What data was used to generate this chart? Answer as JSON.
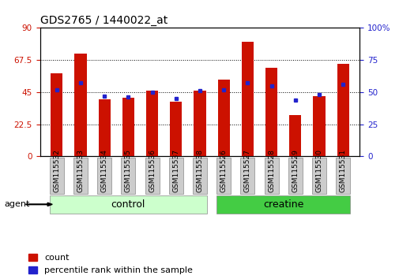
{
  "title": "GDS2765 / 1440022_at",
  "categories": [
    "GSM115532",
    "GSM115533",
    "GSM115534",
    "GSM115535",
    "GSM115536",
    "GSM115537",
    "GSM115538",
    "GSM115526",
    "GSM115527",
    "GSM115528",
    "GSM115529",
    "GSM115530",
    "GSM115531"
  ],
  "count_values": [
    58,
    72,
    40,
    41,
    46,
    38,
    46,
    54,
    80,
    62,
    29,
    42,
    65
  ],
  "percentile_values": [
    52,
    57,
    47,
    46,
    50,
    45,
    51,
    52,
    57,
    55,
    44,
    48,
    56
  ],
  "left_ylim": [
    0,
    90
  ],
  "right_ylim": [
    0,
    100
  ],
  "left_yticks": [
    0,
    22.5,
    45,
    67.5,
    90
  ],
  "right_yticks": [
    0,
    25,
    50,
    75,
    100
  ],
  "left_yticklabels": [
    "0",
    "22.5",
    "45",
    "67.5",
    "90"
  ],
  "right_yticklabels": [
    "0",
    "25",
    "50",
    "75",
    "100%"
  ],
  "bar_color": "#cc1100",
  "percentile_color": "#2222cc",
  "control_bg": "#ccffcc",
  "creatine_bg": "#44cc44",
  "label_bg": "#cccccc",
  "group_label_fontsize": 9,
  "tick_fontsize": 7.5,
  "title_fontsize": 10,
  "legend_fontsize": 8,
  "bar_width": 0.5,
  "n_control": 7,
  "n_creatine": 6
}
